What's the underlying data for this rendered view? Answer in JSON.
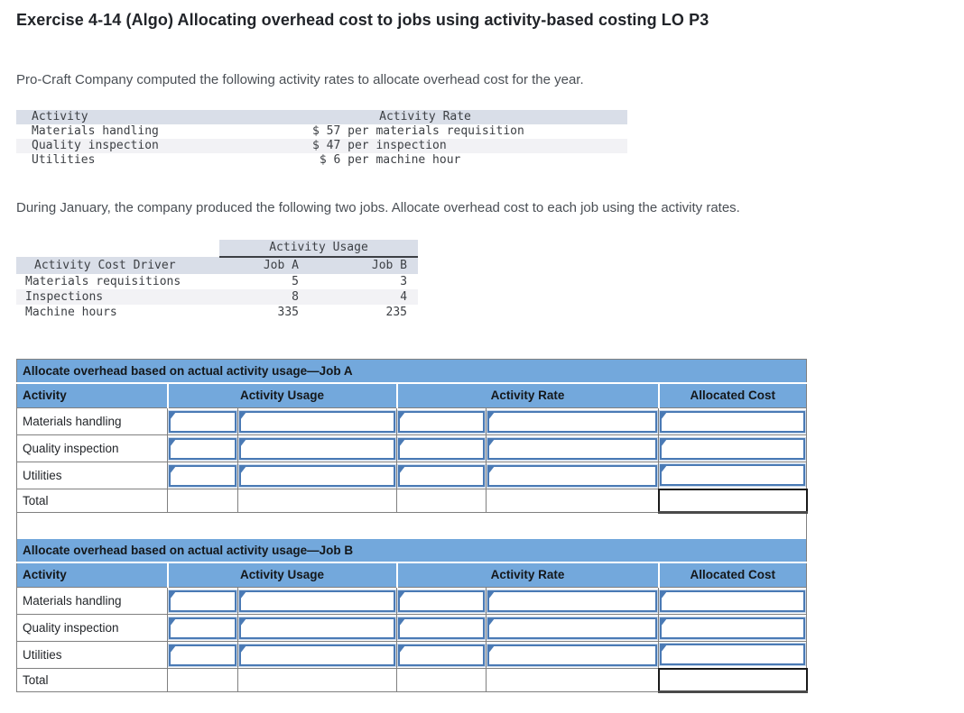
{
  "page": {
    "title": "Exercise 4-14 (Algo) Allocating overhead cost to jobs using activity-based costing LO P3",
    "intro": "Pro-Craft Company computed the following activity rates to allocate overhead cost for the year.",
    "instruction": "During January, the company produced the following two jobs. Allocate overhead cost to each job using the activity rates."
  },
  "rates_table": {
    "headers": {
      "activity": "Activity",
      "rate": "Activity Rate"
    },
    "rows": [
      {
        "activity": "Materials handling",
        "rate": "$ 57 per materials requisition"
      },
      {
        "activity": "Quality inspection",
        "rate": "$ 47 per inspection"
      },
      {
        "activity": "Utilities",
        "rate": " $ 6 per machine hour"
      }
    ]
  },
  "usage_table": {
    "group_header": "Activity Usage",
    "headers": {
      "driver": "Activity Cost Driver",
      "job_a": "Job A",
      "job_b": "Job B"
    },
    "rows": [
      {
        "driver": "Materials requisitions",
        "job_a": "5",
        "job_b": "3"
      },
      {
        "driver": "Inspections",
        "job_a": "8",
        "job_b": "4"
      },
      {
        "driver": "Machine hours",
        "job_a": "335",
        "job_b": "235"
      }
    ]
  },
  "allocation_tables": [
    {
      "title": "Allocate overhead based on actual activity usage—Job A",
      "headers": {
        "activity": "Activity",
        "usage": "Activity Usage",
        "rate": "Activity Rate",
        "allocated": "Allocated Cost"
      },
      "row_labels": [
        "Materials handling",
        "Quality inspection",
        "Utilities"
      ],
      "total_label": "Total"
    },
    {
      "title": "Allocate overhead based on actual activity usage—Job B",
      "headers": {
        "activity": "Activity",
        "usage": "Activity Usage",
        "rate": "Activity Rate",
        "allocated": "Allocated Cost"
      },
      "row_labels": [
        "Materials handling",
        "Quality inspection",
        "Utilities"
      ],
      "total_label": "Total"
    }
  ],
  "colors": {
    "header_blue": "#73a8dc",
    "input_border_blue": "#4a7ab5",
    "mono_header_bg": "#d9dee8",
    "stripe_bg": "#f2f2f5",
    "grid_gray": "#808080"
  }
}
